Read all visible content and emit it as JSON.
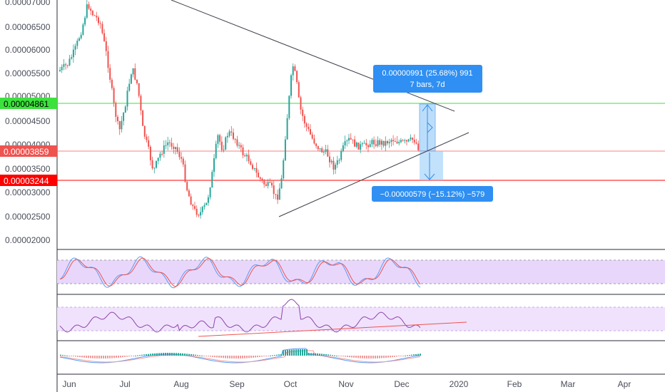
{
  "chart_data": [
    {
      "type": "candlestick",
      "y_axis_labels": [
        "0.00007000",
        "0.00006500",
        "0.00006000",
        "0.00005500",
        "0.00005000",
        "0.00004500",
        "0.00004000",
        "0.00003500",
        "0.00003000",
        "0.00002500",
        "0.00002000"
      ],
      "x_axis_labels": [
        "Jun",
        "Jul",
        "Aug",
        "Sep",
        "Oct",
        "Nov",
        "Dec",
        "2020",
        "Feb",
        "Mar",
        "Apr"
      ],
      "price_tags": [
        {
          "label": "0.00004861",
          "color": "#3de13d"
        },
        {
          "label": "0.00003859",
          "color": "#ef5350"
        },
        {
          "label": "0.00003244",
          "color": "#ff0000"
        }
      ],
      "callout_up": {
        "line1": "0.00000991 (25.68%) 991",
        "line2": "7 bars, 7d"
      },
      "callout_down": {
        "line1": "−0.00000579 (−15.12%) −579"
      },
      "colors": {
        "up": "#26a69a",
        "down": "#ef5350",
        "callout": "#2f8ff2"
      }
    },
    {
      "type": "line",
      "name": "stochastic",
      "colors": [
        "#5b9cf6",
        "#ef5350"
      ]
    },
    {
      "type": "line",
      "name": "rsi",
      "color": "#8e44ad"
    },
    {
      "type": "bar",
      "name": "macd",
      "colors": [
        "#26a69a",
        "#ef9a9a"
      ]
    }
  ]
}
